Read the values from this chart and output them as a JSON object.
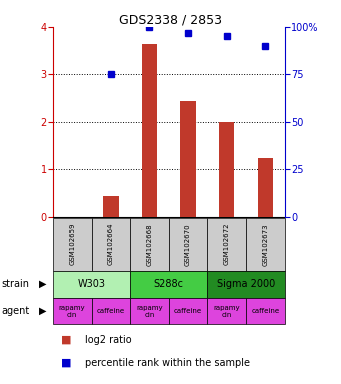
{
  "title": "GDS2338 / 2853",
  "samples": [
    "GSM102659",
    "GSM102664",
    "GSM102668",
    "GSM102670",
    "GSM102672",
    "GSM102673"
  ],
  "log2_ratio": [
    0.0,
    0.45,
    3.65,
    2.45,
    2.0,
    1.25
  ],
  "percentile_rank": [
    null,
    75.0,
    100.0,
    97.0,
    95.0,
    90.0
  ],
  "bar_color": "#c0392b",
  "dot_color": "#0000cc",
  "ylim_left": [
    0,
    4
  ],
  "ylim_right": [
    0,
    100
  ],
  "yticks_left": [
    0,
    1,
    2,
    3,
    4
  ],
  "yticks_right": [
    0,
    25,
    50,
    75,
    100
  ],
  "yticklabels_right": [
    "0",
    "25",
    "50",
    "75",
    "100%"
  ],
  "strains": [
    {
      "label": "W303",
      "cols": [
        0,
        1
      ],
      "color": "#b2f0b2"
    },
    {
      "label": "S288c",
      "cols": [
        2,
        3
      ],
      "color": "#44cc44"
    },
    {
      "label": "Sigma 2000",
      "cols": [
        4,
        5
      ],
      "color": "#228B22"
    }
  ],
  "agents": [
    "rapamycin",
    "caffeine",
    "rapamycin",
    "caffeine",
    "rapamycin",
    "caffeine"
  ],
  "agent_color": "#dd44dd",
  "sample_box_color": "#cccccc",
  "background_color": "#ffffff",
  "left_axis_color": "#cc0000",
  "right_axis_color": "#0000cc",
  "gridline_color": "black",
  "gridline_style": "dotted",
  "title_fontsize": 9,
  "tick_fontsize": 7,
  "sample_fontsize": 5,
  "strain_fontsize": 7,
  "agent_fontsize": 5,
  "label_fontsize": 7,
  "legend_fontsize": 7
}
